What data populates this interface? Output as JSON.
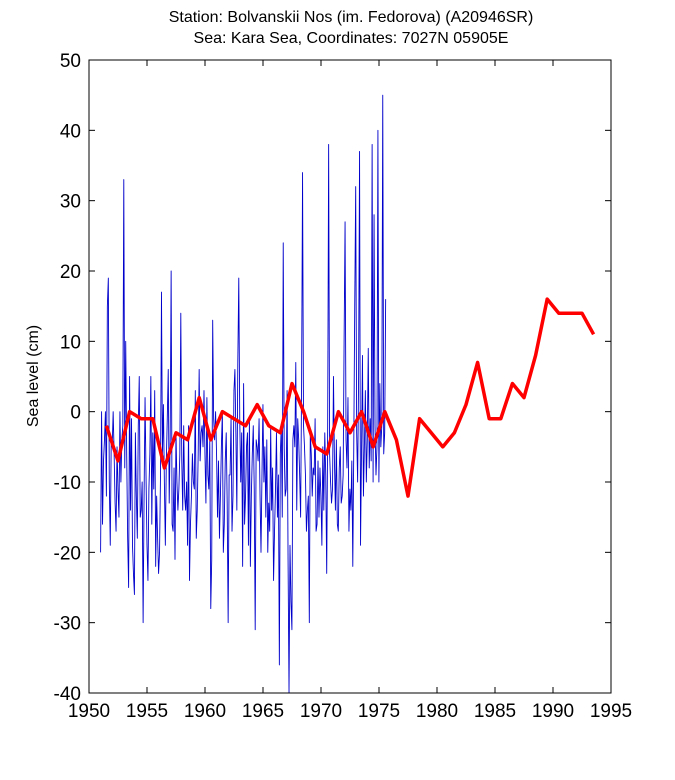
{
  "chart_data": {
    "type": "line",
    "title_line1": "Station: Bolvanskii Nos (im. Fedorova)  (A20946SR)",
    "title_line2": "Sea: Kara Sea, Coordinates: 7027N 05905E",
    "xlabel": "",
    "ylabel": "Sea level (cm)",
    "xlim": [
      1950,
      1995
    ],
    "ylim": [
      -40,
      50
    ],
    "x_ticks": [
      1950,
      1955,
      1960,
      1965,
      1970,
      1975,
      1980,
      1985,
      1990,
      1995
    ],
    "y_ticks": [
      -40,
      -30,
      -20,
      -10,
      0,
      10,
      20,
      30,
      40,
      50
    ],
    "grid": false,
    "series": [
      {
        "color": "#0000cc",
        "style": "thin",
        "x_start": 1951.0,
        "x_step": 0.0833,
        "values": [
          -20,
          0,
          -16,
          -7,
          -4,
          0,
          -12,
          15,
          19,
          -10,
          -19,
          -4,
          -5,
          0,
          -6,
          -13,
          -17,
          -5,
          -11,
          -15,
          0,
          -10,
          -4,
          -2,
          33,
          -8,
          10,
          -6,
          -18,
          -25,
          5,
          -14,
          -1,
          -19,
          -23,
          -26,
          -3,
          -12,
          -18,
          -2,
          5,
          -15,
          -14,
          -10,
          -30,
          -12,
          2,
          -9,
          -19,
          -24,
          -11,
          -6,
          5,
          -16,
          -3,
          -11,
          3,
          -22,
          -12,
          -18,
          -23,
          -20,
          -9,
          17,
          -6,
          1,
          -10,
          -19,
          -7,
          -1,
          6,
          -13,
          -4,
          20,
          -16,
          -17,
          -8,
          -21,
          -3,
          -10,
          -14,
          -11,
          -6,
          14,
          -7,
          -14,
          -2,
          -12,
          -14,
          -10,
          -19,
          -2,
          -24,
          -16,
          -12,
          -6,
          -10,
          -11,
          3,
          -18,
          -14,
          -6,
          6,
          -7,
          -3,
          -2,
          -5,
          3,
          -6,
          -13,
          2,
          -9,
          -11,
          -4,
          -28,
          -21,
          13,
          -1,
          -4,
          0,
          -6,
          -15,
          -7,
          -18,
          -12,
          -5,
          0,
          -20,
          -16,
          -7,
          -3,
          -13,
          -30,
          -9,
          -9,
          -1,
          -17,
          -12,
          3,
          6,
          -3,
          -14,
          7,
          19,
          -1,
          -10,
          -3,
          -22,
          4,
          -16,
          -12,
          -5,
          -3,
          -19,
          -1,
          -22,
          -12,
          -6,
          -2,
          -11,
          -31,
          -4,
          -5,
          -7,
          -1,
          -12,
          -20,
          -9,
          1,
          -10,
          -5,
          -15,
          -4,
          -20,
          -13,
          -17,
          -2,
          -14,
          -8,
          -24,
          -17,
          -11,
          -3,
          -15,
          -9,
          -36,
          -6,
          -2,
          -15,
          24,
          -5,
          -12,
          -11,
          3,
          -21,
          -40,
          -19,
          -27,
          -31,
          -4,
          -2,
          -5,
          7,
          -14,
          -1,
          -4,
          -9,
          -15,
          4,
          34,
          -2,
          -5,
          -9,
          -17,
          -14,
          -12,
          -30,
          -3,
          -6,
          -12,
          -8,
          -9,
          -1,
          -17,
          -16,
          -7,
          -15,
          -8,
          -12,
          -19,
          -5,
          -14,
          -3,
          -9,
          -23,
          -2,
          38,
          -6,
          -10,
          -13,
          -11,
          5,
          -7,
          -14,
          -4,
          -16,
          -17,
          -8,
          -5,
          -13,
          -12,
          -9,
          10,
          27,
          -4,
          -8,
          2,
          -17,
          -11,
          -14,
          -7,
          -22,
          -5,
          15,
          32,
          -3,
          -10,
          5,
          37,
          -19,
          -6,
          8,
          -12,
          -5,
          3,
          -10,
          -4,
          9,
          -8,
          -1,
          -7,
          38,
          -10,
          28,
          -2,
          -9,
          -5,
          40,
          -10,
          4,
          -5,
          -2,
          45,
          -6,
          -3,
          16
        ]
      },
      {
        "color": "#ff0000",
        "style": "thick",
        "x": [
          1951.5,
          1952.5,
          1953.5,
          1954.5,
          1955.5,
          1956.5,
          1957.5,
          1958.5,
          1959.5,
          1960.5,
          1961.5,
          1962.5,
          1963.5,
          1964.5,
          1965.5,
          1966.5,
          1967.5,
          1968.5,
          1969.5,
          1970.5,
          1971.5,
          1972.5,
          1973.5,
          1974.5,
          1975.5,
          1976.5,
          1977.5,
          1978.5,
          1979.5,
          1980.5,
          1981.5,
          1982.5,
          1983.5,
          1984.5,
          1985.5,
          1986.5,
          1987.5,
          1988.5,
          1989.5,
          1990.5,
          1991.5,
          1992.5,
          1993.5
        ],
        "values": [
          -2,
          -7,
          0,
          -1,
          -1,
          -8,
          -3,
          -4,
          2,
          -4,
          0,
          -1,
          -2,
          1,
          -2,
          -3,
          4,
          0,
          -5,
          -6,
          0,
          -3,
          0,
          -5,
          0,
          -4,
          -12,
          -1,
          -3,
          -5,
          -3,
          1,
          7,
          -1,
          -1,
          4,
          2,
          8,
          16,
          14,
          14,
          14,
          11
        ]
      }
    ]
  }
}
